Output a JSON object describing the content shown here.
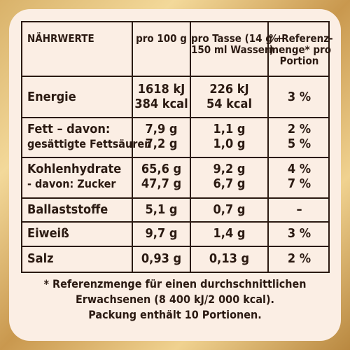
{
  "table": {
    "headers": {
      "nutrients": "NÄHRWERTE",
      "per100": "pro 100 g",
      "perCup_line1": "pro Tasse (14 g +",
      "perCup_line2": "150 ml Wasser)",
      "ref_line1": "% Referenz-",
      "ref_line2": "menge* pro",
      "ref_line3": "Portion"
    },
    "rows": [
      {
        "name": [
          "Energie"
        ],
        "per100": [
          "1618 kJ",
          "384 kcal"
        ],
        "perCup": [
          "226 kJ",
          "54 kcal"
        ],
        "ref": [
          "3 %"
        ]
      },
      {
        "name": [
          "Fett – davon:",
          "gesättigte Fettsäuren"
        ],
        "per100": [
          "7,9 g",
          "7,2 g"
        ],
        "perCup": [
          "1,1 g",
          "1,0 g"
        ],
        "ref": [
          "2 %",
          "5 %"
        ]
      },
      {
        "name": [
          "Kohlenhydrate",
          "- davon: Zucker"
        ],
        "per100": [
          "65,6 g",
          "47,7 g"
        ],
        "perCup": [
          "9,2 g",
          "6,7 g"
        ],
        "ref": [
          "4 %",
          "7 %"
        ]
      },
      {
        "name": [
          "Ballaststoffe"
        ],
        "per100": [
          "5,1 g"
        ],
        "perCup": [
          "0,7 g"
        ],
        "ref": [
          "–"
        ]
      },
      {
        "name": [
          "Eiweiß"
        ],
        "per100": [
          "9,7 g"
        ],
        "perCup": [
          "1,4 g"
        ],
        "ref": [
          "3 %"
        ]
      },
      {
        "name": [
          "Salz"
        ],
        "per100": [
          "0,93 g"
        ],
        "perCup": [
          "0,13 g"
        ],
        "ref": [
          "2 %"
        ]
      }
    ]
  },
  "footnote": {
    "line1": "* Referenzmenge für einen durchschnittlichen",
    "line2": "Erwachsenen (8 400 kJ/2 000 kcal).",
    "line3": "Packung enthält 10 Portionen."
  }
}
